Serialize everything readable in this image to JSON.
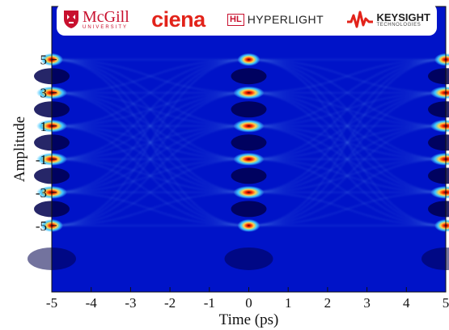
{
  "logos": {
    "mcgill_name": "McGill",
    "mcgill_sub": "UNIVERSITY",
    "ciena": "ciena",
    "hyperlight_mark": "HL",
    "hyperlight": "HYPERLIGHT",
    "keysight": "KEYSIGHT",
    "keysight_sub": "TECHNOLOGIES",
    "mcgill_color": "#c8102e",
    "ciena_color": "#e2231a"
  },
  "chart_data": {
    "type": "heatmap",
    "subtype": "eye-diagram",
    "title": "",
    "xlabel": "Time (ps)",
    "ylabel": "Amplitude",
    "xlim": [
      -5,
      5
    ],
    "ylim": [
      -9,
      8.2
    ],
    "xticks": [
      -5,
      -4,
      -3,
      -2,
      -1,
      0,
      1,
      2,
      3,
      4,
      5
    ],
    "yticks": [
      -5,
      -3,
      -1,
      1,
      3,
      5
    ],
    "levels": [
      -5,
      -3,
      -1,
      1,
      3,
      5
    ],
    "eye_crossing_times": [
      -5,
      0,
      5
    ],
    "colormap": [
      "#00008c",
      "#0019e6",
      "#1e6eff",
      "#50c8ff",
      "#ffff64",
      "#ff3c00",
      "#640000"
    ],
    "grid": false
  }
}
